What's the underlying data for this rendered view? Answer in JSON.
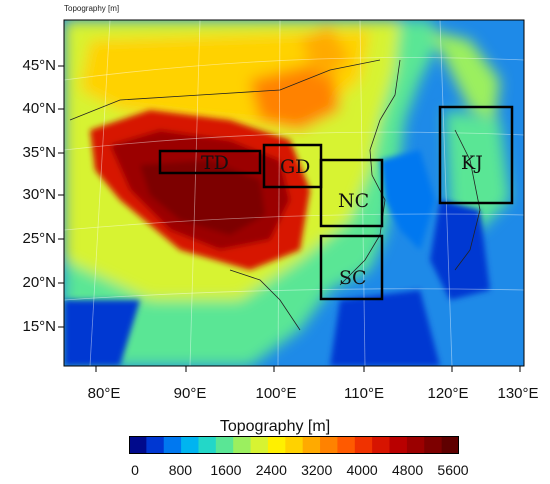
{
  "corner_title": "Topography [m]",
  "colorbar": {
    "title": "Topography [m]",
    "tick_labels": [
      "0",
      "800",
      "1600",
      "2400",
      "3200",
      "4000",
      "4800",
      "5600"
    ],
    "min": 0,
    "max": 6000,
    "colors": [
      "#000a8c",
      "#0037d2",
      "#0078f0",
      "#00b4f0",
      "#23d7c8",
      "#5ae695",
      "#9bef5f",
      "#d7f332",
      "#fff000",
      "#ffd200",
      "#ffaa00",
      "#ff8200",
      "#ff5a00",
      "#f03200",
      "#d71400",
      "#b90000",
      "#9b0000",
      "#7d0000",
      "#5f0000"
    ]
  },
  "map": {
    "latitude_labels": [
      "45°N",
      "40°N",
      "35°N",
      "30°N",
      "25°N",
      "20°N",
      "15°N"
    ],
    "longitude_labels": [
      "80°E",
      "90°E",
      "100°E",
      "110°E",
      "120°E",
      "130°E"
    ],
    "regions": [
      {
        "id": "td",
        "label": "TD"
      },
      {
        "id": "gd",
        "label": "GD"
      },
      {
        "id": "nc",
        "label": "NC"
      },
      {
        "id": "sc",
        "label": "SC"
      },
      {
        "id": "kj",
        "label": "KJ"
      }
    ]
  }
}
